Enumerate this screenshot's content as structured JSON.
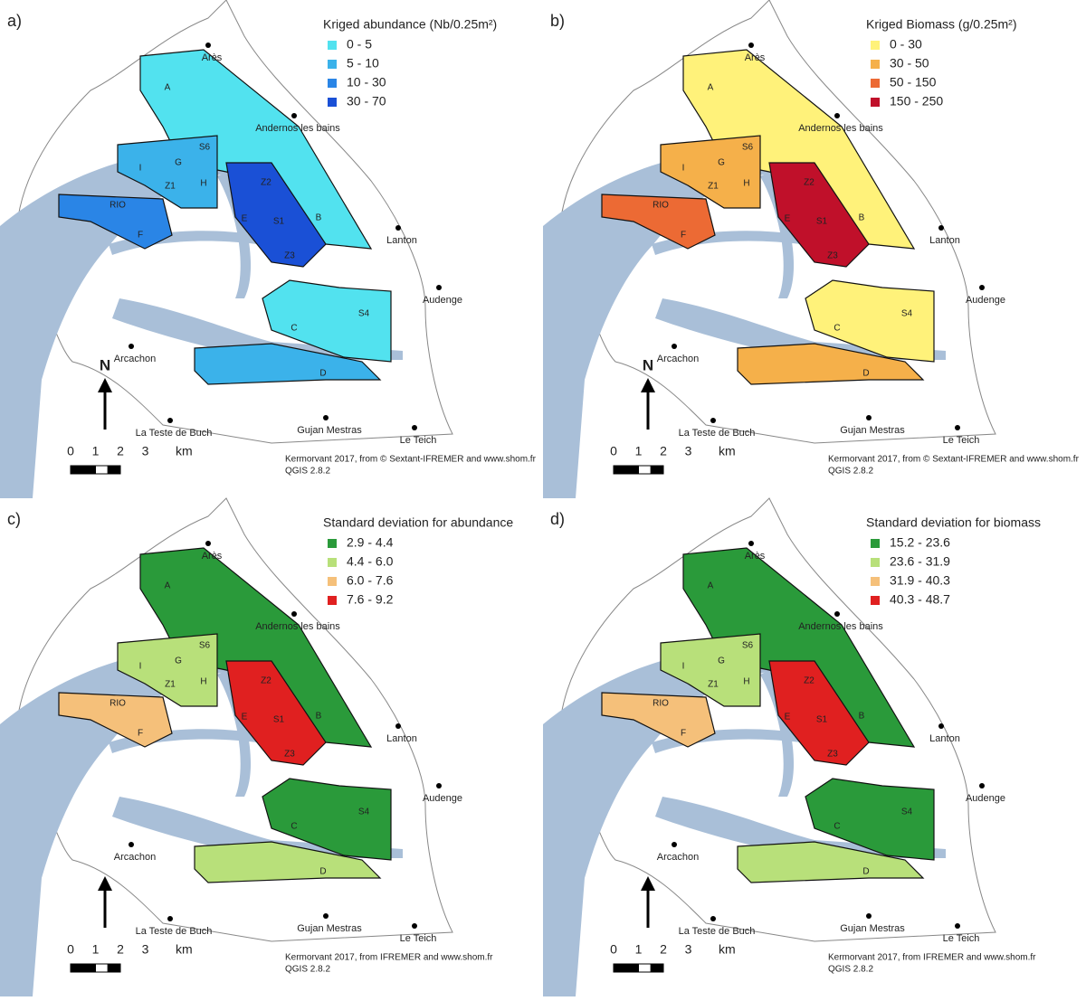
{
  "panels": [
    {
      "label": "a)",
      "legend": {
        "title": "Kriged abundance (Nb/0.25m²)",
        "items": [
          {
            "label": "0 - 5",
            "color": "#52e2ef"
          },
          {
            "label": "5 - 10",
            "color": "#3bb2ea"
          },
          {
            "label": "10 - 30",
            "color": "#2a85e6"
          },
          {
            "label": "30 - 70",
            "color": "#1a50d6"
          }
        ]
      },
      "north": "N",
      "credit": [
        "Kermorvant 2017,  from © Sextant-IFREMER and www.shom.fr",
        "QGIS 2.8.2"
      ]
    },
    {
      "label": "b)",
      "legend": {
        "title": "Kriged Biomass (g/0.25m²)",
        "items": [
          {
            "label": "0 - 30",
            "color": "#fff27a"
          },
          {
            "label": "30 - 50",
            "color": "#f5b04a"
          },
          {
            "label": "50 - 150",
            "color": "#ec6a34"
          },
          {
            "label": "150 - 250",
            "color": "#c0102a"
          }
        ]
      },
      "north": "N",
      "credit": [
        "Kermorvant 2017,  from © Sextant-IFREMER and www.shom.fr",
        "QGIS 2.8.2"
      ]
    },
    {
      "label": "c)",
      "legend": {
        "title": "Standard deviation for abundance",
        "items": [
          {
            "label": "2.9 - 4.4",
            "color": "#2a9a3a"
          },
          {
            "label": "4.4 - 6.0",
            "color": "#b8e07a"
          },
          {
            "label": "6.0 - 7.6",
            "color": "#f5c07a"
          },
          {
            "label": "7.6 - 9.2",
            "color": "#e02020"
          }
        ]
      },
      "credit": [
        "Kermorvant 2017,  from IFREMER and www.shom.fr",
        "QGIS 2.8.2"
      ]
    },
    {
      "label": "d)",
      "legend": {
        "title": "Standard deviation for biomass",
        "items": [
          {
            "label": "15.2 - 23.6",
            "color": "#2a9a3a"
          },
          {
            "label": "23.6 - 31.9",
            "color": "#b8e07a"
          },
          {
            "label": "31.9 - 40.3",
            "color": "#f5c07a"
          },
          {
            "label": "40.3 - 48.7",
            "color": "#e02020"
          }
        ]
      },
      "credit": [
        "Kermorvant 2017,  from IFREMER and www.shom.fr",
        "QGIS 2.8.2"
      ]
    }
  ],
  "places": [
    "Arès",
    "Andernos les bains",
    "Lanton",
    "Audenge",
    "Arcachon",
    "La Teste de Buch",
    "Gujan Mestras",
    "Le Teich"
  ],
  "zones": [
    "A",
    "S6",
    "G",
    "I",
    "Z1",
    "H",
    "Z2",
    "E",
    "S1",
    "B",
    "RIO",
    "F",
    "Z3",
    "C",
    "S4",
    "D"
  ],
  "scale": [
    "0",
    "1",
    "2",
    "3",
    "km"
  ]
}
